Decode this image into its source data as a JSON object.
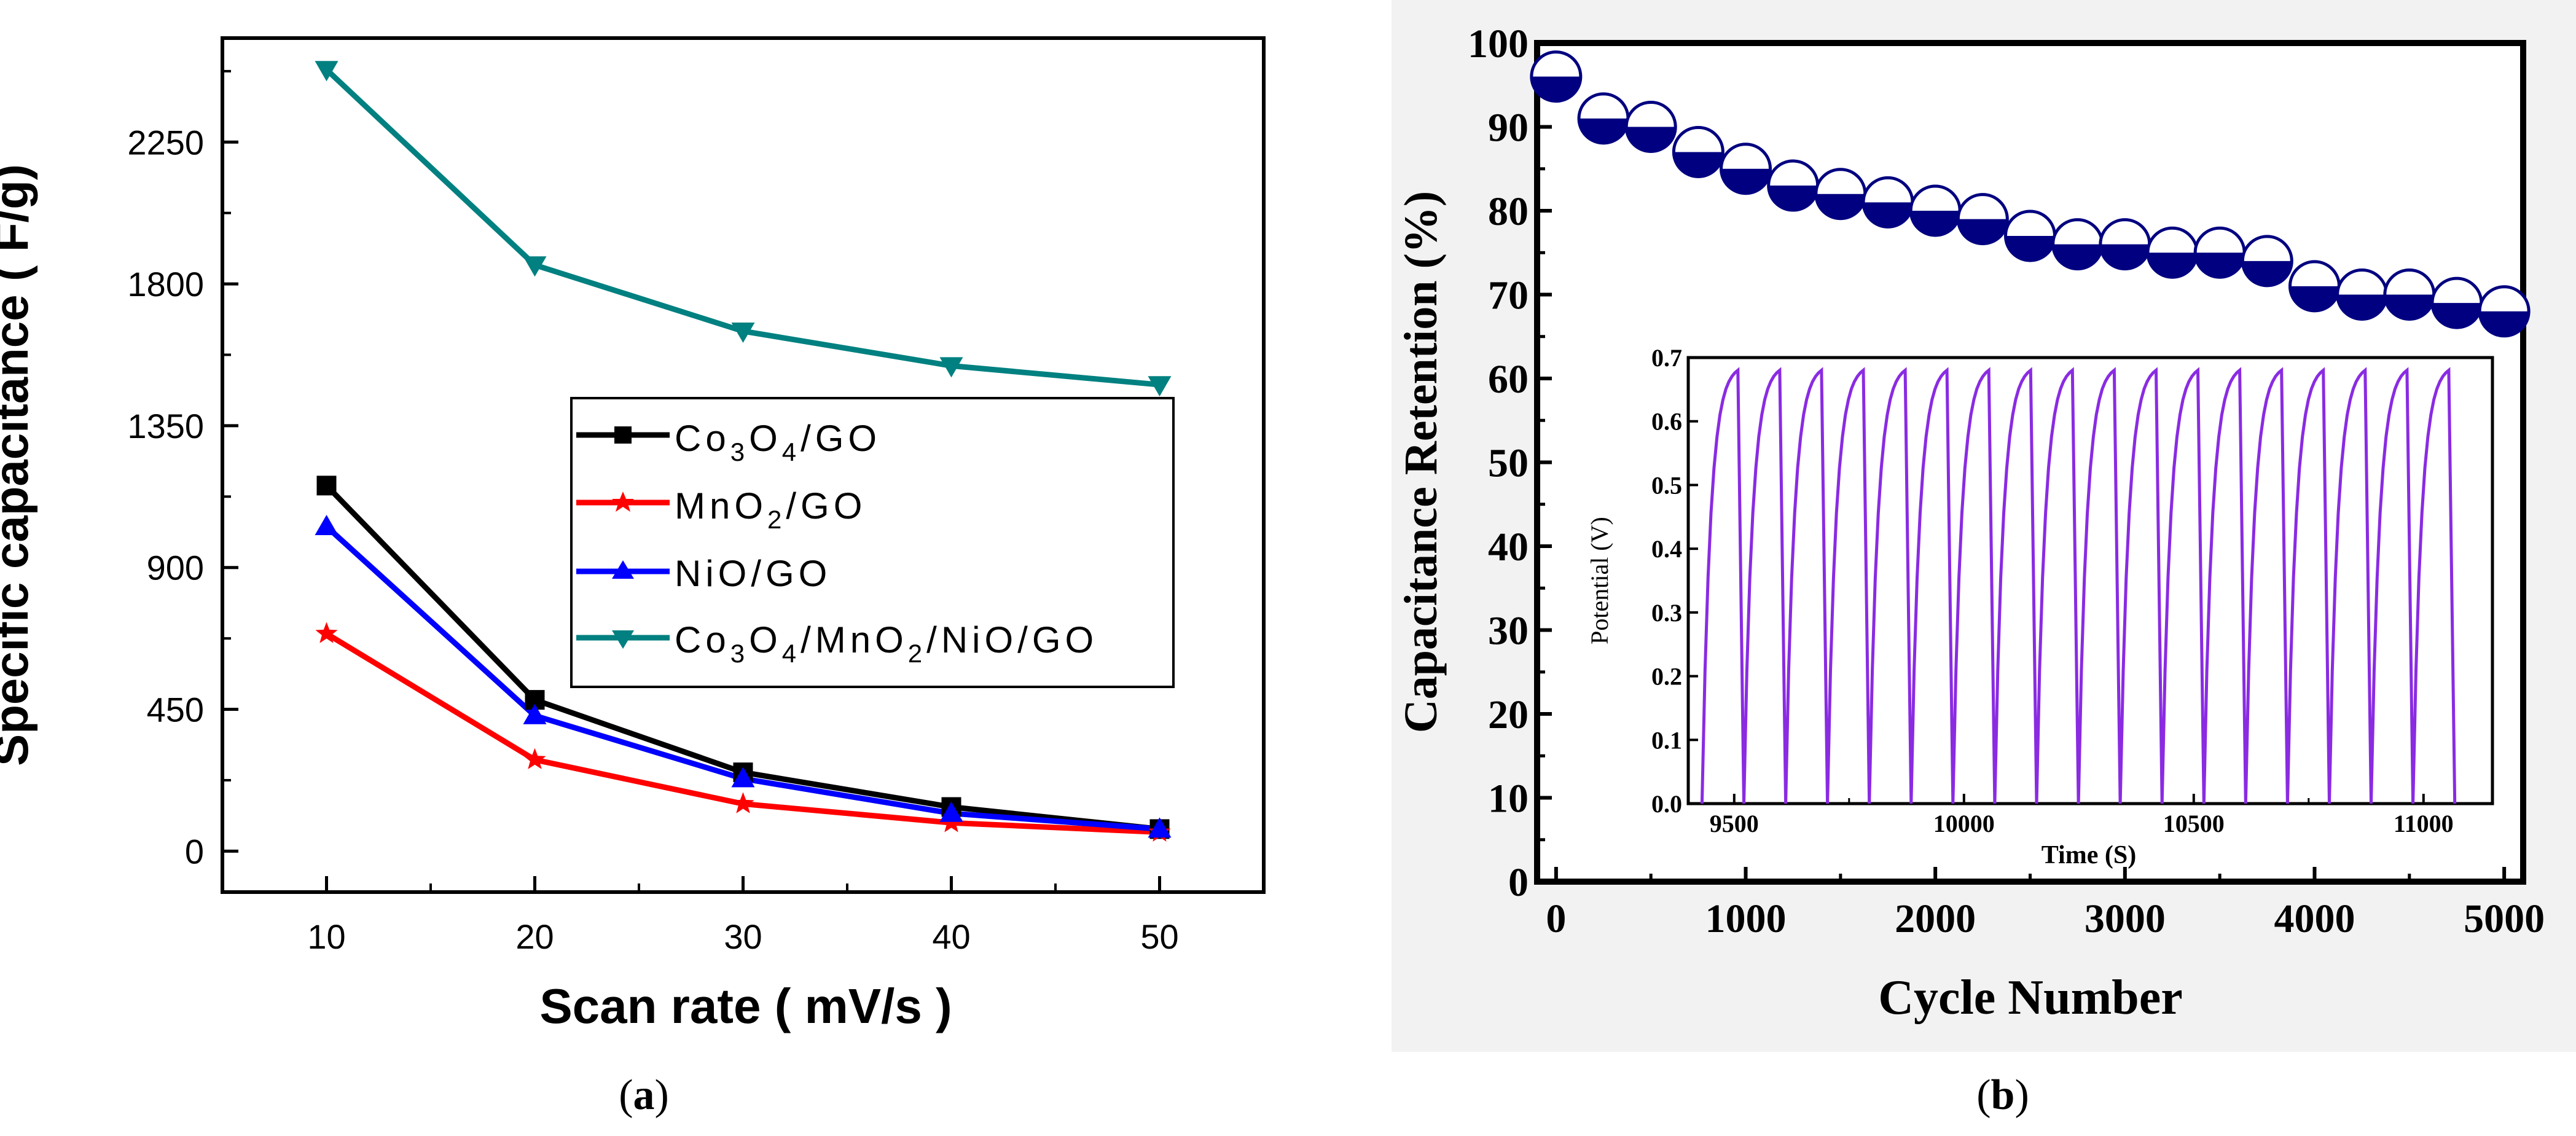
{
  "figure": {
    "panel_a_caption": "a",
    "panel_b_caption": "b"
  },
  "chart_data": [
    {
      "type": "line",
      "title": "",
      "xlabel": "Scan rate ( mV/s )",
      "ylabel": "Specific capacitance ( F/g)",
      "x": [
        10,
        20,
        30,
        40,
        50
      ],
      "xlim": [
        5,
        55
      ],
      "ylim": [
        -130,
        2580
      ],
      "xticks": [
        10,
        20,
        30,
        40,
        50
      ],
      "yticks": [
        0,
        450,
        900,
        1350,
        1800,
        2250
      ],
      "legend_position": "center-right",
      "series": [
        {
          "name": "Co3O4/GO",
          "color": "#000000",
          "marker": "square",
          "values": [
            1160,
            480,
            250,
            140,
            70
          ]
        },
        {
          "name": "MnO2/GO",
          "color": "#ff0000",
          "marker": "star",
          "values": [
            690,
            290,
            150,
            90,
            60
          ]
        },
        {
          "name": "NiO/GO",
          "color": "#0000ff",
          "marker": "triangle-up",
          "values": [
            1030,
            430,
            230,
            120,
            70
          ]
        },
        {
          "name": "Co3O4/MnO2/NiO/GO",
          "color": "#008080",
          "marker": "triangle-down",
          "values": [
            2480,
            1860,
            1650,
            1540,
            1480
          ]
        }
      ]
    },
    {
      "type": "scatter",
      "title": "",
      "xlabel": "Cycle Number",
      "ylabel": "Capacitance Retention (%)",
      "xlim": [
        -100,
        5100
      ],
      "ylim": [
        0,
        100
      ],
      "xticks": [
        0,
        1000,
        2000,
        3000,
        4000,
        5000
      ],
      "yticks": [
        0,
        10,
        20,
        30,
        40,
        50,
        60,
        70,
        80,
        90,
        100
      ],
      "marker": "half-filled circle",
      "color": "#000080",
      "series": [
        {
          "name": "Capacitance Retention",
          "x": [
            0,
            250,
            500,
            750,
            1000,
            1250,
            1500,
            1750,
            2000,
            2250,
            2500,
            2750,
            3000,
            3250,
            3500,
            3750,
            4000,
            4250,
            4500,
            4750,
            5000
          ],
          "values": [
            96,
            91,
            90,
            87,
            85,
            83,
            82,
            81,
            80,
            79,
            77,
            76,
            76,
            75,
            75,
            74,
            71,
            70,
            70,
            69,
            68
          ]
        }
      ],
      "inset": {
        "type": "line",
        "xlabel": "Time (S)",
        "ylabel": "Potential (V)",
        "xlim": [
          9400,
          11150
        ],
        "ylim": [
          0,
          0.7
        ],
        "xticks": [
          9500,
          10000,
          10500,
          11000
        ],
        "yticks": [
          0.0,
          0.1,
          0.2,
          0.3,
          0.4,
          0.5,
          0.6,
          0.7
        ],
        "color": "#8a2be2",
        "cycles": 18,
        "cycle_start": 9430,
        "cycle_period": 91,
        "v_max": 0.68
      }
    }
  ]
}
